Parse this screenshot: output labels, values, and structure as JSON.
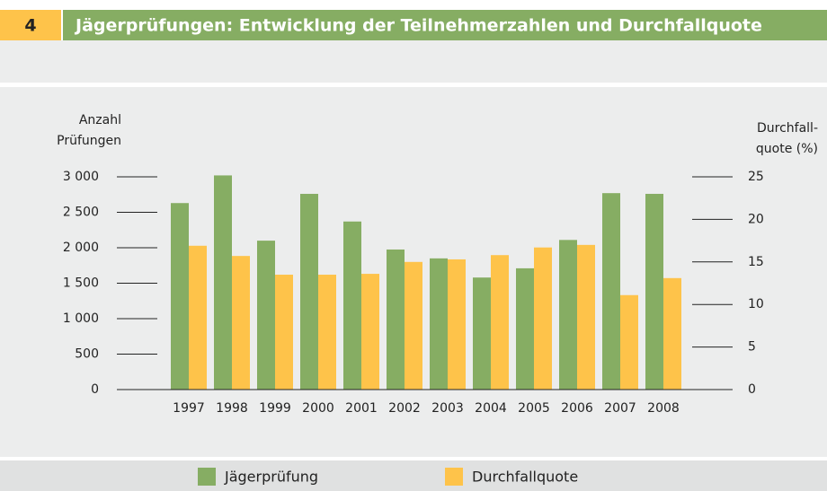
{
  "chart_data": {
    "type": "bar",
    "number": "4",
    "title": "Jägerprüfungen: Entwicklung der Teilnehmerzahlen und Durchfallquote",
    "ylabel": [
      "Anzahl",
      "Prüfungen"
    ],
    "y2label": [
      "Durchfall-",
      "quote (%)"
    ],
    "categories": [
      "1997",
      "1998",
      "1999",
      "2000",
      "2001",
      "2002",
      "2003",
      "2004",
      "2005",
      "2006",
      "2007",
      "2008"
    ],
    "series": [
      {
        "name": "Jägerprüfung",
        "color": "#86ad63",
        "values": [
          2630,
          3020,
          2100,
          2760,
          2370,
          1975,
          1850,
          1580,
          1710,
          2110,
          2770,
          2760
        ]
      },
      {
        "name": "Durchfallquote",
        "color": "#fec34a",
        "axis": "y2",
        "values": [
          16.9,
          15.7,
          13.5,
          13.5,
          13.6,
          15.0,
          15.3,
          15.8,
          16.7,
          17.0,
          11.1,
          13.1
        ]
      }
    ],
    "ylim": [
      0,
      3000
    ],
    "yticks": [
      0,
      500,
      {
        "value": 1000,
        "label": "1 000"
      },
      {
        "value": 1500,
        "label": "1 500"
      },
      {
        "value": 2000,
        "label": "2 000"
      },
      {
        "value": 2500,
        "label": "2 500"
      },
      {
        "value": 3000,
        "label": "3 000"
      }
    ],
    "y2lim": [
      0,
      25
    ],
    "y2ticks": [
      0,
      5,
      10,
      15,
      20,
      25
    ]
  }
}
